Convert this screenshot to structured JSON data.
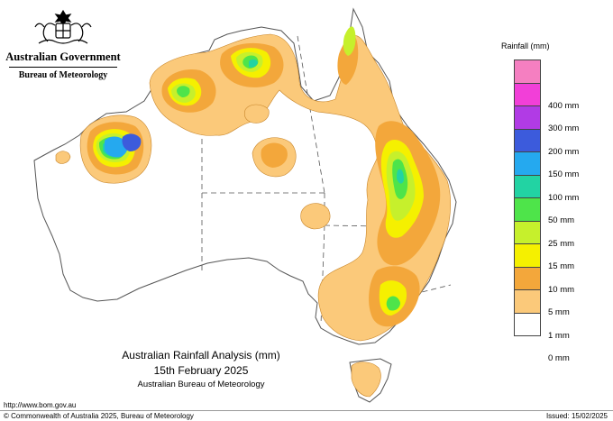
{
  "header": {
    "government": "Australian Government",
    "agency": "Bureau of Meteorology"
  },
  "map": {
    "title": "Australian Rainfall Analysis (mm)",
    "date": "15th February 2025",
    "source": "Australian Bureau of Meteorology",
    "colors": {
      "c1": "#fbc97a",
      "c5": "#f3a73b",
      "c10": "#f5f000",
      "c15": "#c6f02c",
      "c25": "#4ee44a",
      "c50": "#22d3a3",
      "c100": "#25a9ef",
      "c150": "#3c5bdc",
      "coast": "#555555"
    }
  },
  "legend": {
    "title": "Rainfall (mm)",
    "items": [
      {
        "label": "",
        "color": "#f57fc1"
      },
      {
        "label": "400 mm",
        "color": "#f23fd8"
      },
      {
        "label": "300 mm",
        "color": "#b13be5"
      },
      {
        "label": "200 mm",
        "color": "#3c5bdc"
      },
      {
        "label": "150 mm",
        "color": "#25a9ef"
      },
      {
        "label": "100 mm",
        "color": "#22d3a3"
      },
      {
        "label": "50 mm",
        "color": "#4ee44a"
      },
      {
        "label": "25 mm",
        "color": "#c6f02c"
      },
      {
        "label": "15 mm",
        "color": "#f5f000"
      },
      {
        "label": "10 mm",
        "color": "#f3a73b"
      },
      {
        "label": "5 mm",
        "color": "#fbc97a"
      },
      {
        "label": "1 mm",
        "color": "#ffffff"
      },
      {
        "label": "0 mm",
        "color": ""
      }
    ]
  },
  "footer": {
    "url": "http://www.bom.gov.au",
    "copyright": "© Commonwealth of Australia 2025, Bureau of Meteorology",
    "issued": "Issued: 15/02/2025"
  }
}
